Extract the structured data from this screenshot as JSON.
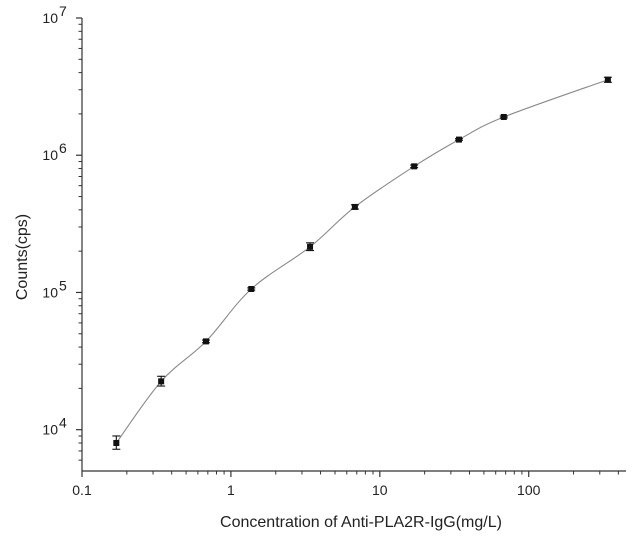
{
  "chart_data": {
    "type": "scatter",
    "title": "",
    "xlabel": "Concentration of Anti-PLA2R-IgG(mg/L)",
    "ylabel": "Counts(cps)",
    "xscale": "log",
    "yscale": "log",
    "xlim": [
      0.1,
      450
    ],
    "ylim": [
      5000,
      10000000
    ],
    "grid": false,
    "legend": "none",
    "x_ticks": [
      {
        "value": 0.1,
        "label": "0.1"
      },
      {
        "value": 1,
        "label": "1"
      },
      {
        "value": 10,
        "label": "10"
      },
      {
        "value": 100,
        "label": "100"
      }
    ],
    "y_ticks": [
      {
        "value": 10000,
        "base": "10",
        "exp": "4"
      },
      {
        "value": 100000,
        "base": "10",
        "exp": "5"
      },
      {
        "value": 1000000,
        "base": "10",
        "exp": "6"
      },
      {
        "value": 10000000,
        "base": "10",
        "exp": "7"
      }
    ],
    "series": [
      {
        "marker": "square",
        "fit_line": true,
        "points": [
          {
            "x": 0.17,
            "y": 8000,
            "err_low": 7200,
            "err_high": 9000
          },
          {
            "x": 0.34,
            "y": 22500,
            "err_low": 20800,
            "err_high": 24500
          },
          {
            "x": 0.68,
            "y": 44000,
            "err_low": 43000,
            "err_high": 45000
          },
          {
            "x": 1.37,
            "y": 106000,
            "err_low": 104000,
            "err_high": 108000
          },
          {
            "x": 3.4,
            "y": 215000,
            "err_low": 202000,
            "err_high": 230000
          },
          {
            "x": 6.8,
            "y": 420000,
            "err_low": 405000,
            "err_high": 435000
          },
          {
            "x": 17,
            "y": 830000,
            "err_low": 812000,
            "err_high": 848000
          },
          {
            "x": 34,
            "y": 1300000,
            "err_low": 1285000,
            "err_high": 1320000
          },
          {
            "x": 68,
            "y": 1900000,
            "err_low": 1870000,
            "err_high": 1930000
          },
          {
            "x": 340,
            "y": 3550000,
            "err_low": 3400000,
            "err_high": 3700000
          }
        ]
      }
    ],
    "colors": {
      "marker": "#111111",
      "fit": "#8a8a8a",
      "axis": "#333333"
    }
  }
}
